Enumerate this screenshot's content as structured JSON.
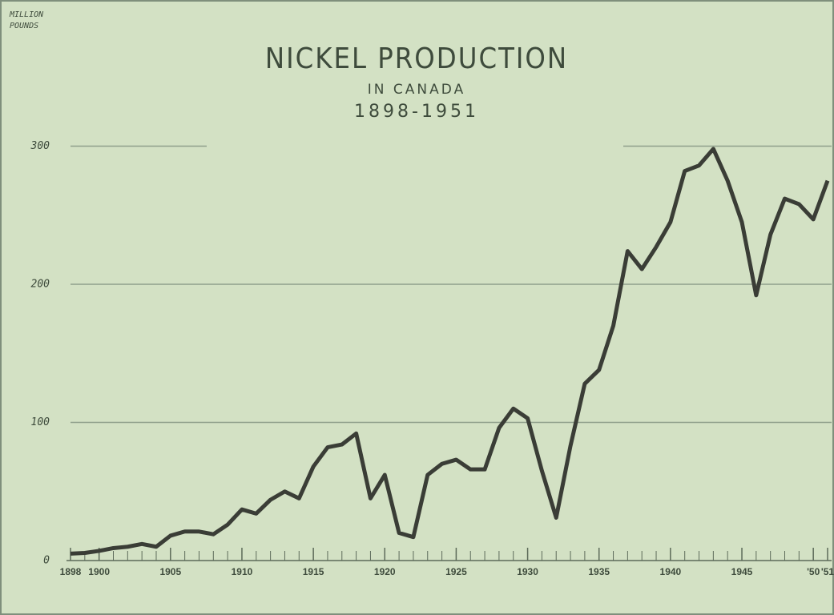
{
  "chart_data": {
    "type": "line",
    "title": "NICKEL PRODUCTION",
    "subtitle": [
      "IN CANADA",
      "1898-1951"
    ],
    "y_label": [
      "MILLION",
      "POUNDS"
    ],
    "x": [
      1898,
      1899,
      1900,
      1901,
      1902,
      1903,
      1904,
      1905,
      1906,
      1907,
      1908,
      1909,
      1910,
      1911,
      1912,
      1913,
      1914,
      1915,
      1916,
      1917,
      1918,
      1919,
      1920,
      1921,
      1922,
      1923,
      1924,
      1925,
      1926,
      1927,
      1928,
      1929,
      1930,
      1931,
      1932,
      1933,
      1934,
      1935,
      1936,
      1937,
      1938,
      1939,
      1940,
      1941,
      1942,
      1943,
      1944,
      1945,
      1946,
      1947,
      1948,
      1949,
      1950,
      1951
    ],
    "series": [
      {
        "color": "#3a3d36",
        "values": [
          5,
          5.5,
          7,
          9,
          10,
          12,
          10,
          18,
          21,
          21,
          19,
          26,
          37,
          34,
          44,
          50,
          45,
          68,
          82,
          84,
          92,
          45,
          62,
          20,
          17,
          62,
          70,
          73,
          66,
          66,
          96,
          110,
          103,
          65,
          31,
          83,
          128,
          138,
          170,
          224,
          211,
          227,
          245,
          282,
          286,
          298,
          275,
          245,
          192,
          236,
          262,
          258,
          247,
          275
        ]
      }
    ],
    "xlim": [
      1898,
      1951
    ],
    "xticks": [
      1898,
      1900,
      1905,
      1910,
      1915,
      1920,
      1925,
      1930,
      1935,
      1940,
      1945,
      {
        "value": 1950,
        "label": "'50"
      },
      {
        "value": 1951,
        "label": "'51"
      }
    ],
    "ylim": [
      0,
      400
    ],
    "yticks": [
      0,
      100,
      200,
      300
    ],
    "grid": true
  }
}
